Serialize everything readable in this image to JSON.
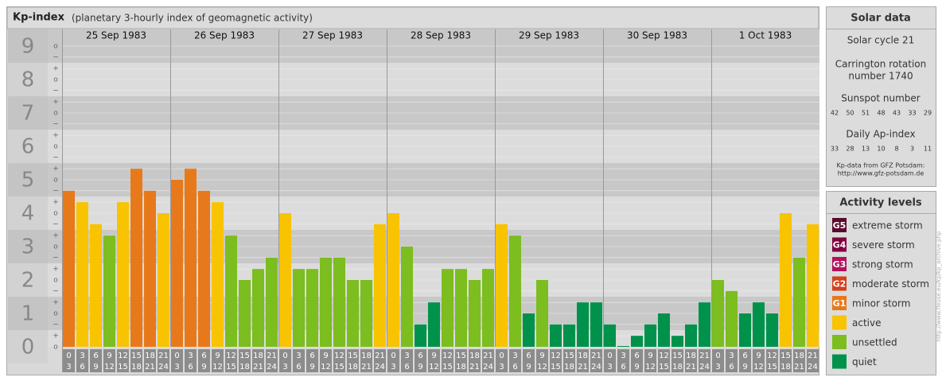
{
  "chart_data": {
    "type": "bar",
    "title": "Kp-index",
    "subtitle": "(planetary 3-hourly index of geomagnetic activity)",
    "ylim": [
      0,
      9.5
    ],
    "yticks": [
      0,
      1,
      2,
      3,
      4,
      5,
      6,
      7,
      8,
      9
    ],
    "minor_ticks": [
      {
        "value": 0,
        "label": "o"
      },
      {
        "value": 0.33,
        "label": "+"
      },
      {
        "value": 0.67,
        "label": "−"
      },
      {
        "value": 1,
        "label": "o"
      },
      {
        "value": 1.33,
        "label": "+"
      },
      {
        "value": 1.67,
        "label": "−"
      },
      {
        "value": 2,
        "label": "o"
      },
      {
        "value": 2.33,
        "label": "+"
      },
      {
        "value": 2.67,
        "label": "−"
      },
      {
        "value": 3,
        "label": "o"
      },
      {
        "value": 3.33,
        "label": "+"
      },
      {
        "value": 3.67,
        "label": "−"
      },
      {
        "value": 4,
        "label": "o"
      },
      {
        "value": 4.33,
        "label": "+"
      },
      {
        "value": 4.67,
        "label": "−"
      },
      {
        "value": 5,
        "label": "o"
      },
      {
        "value": 5.33,
        "label": "+"
      },
      {
        "value": 5.67,
        "label": "−"
      },
      {
        "value": 6,
        "label": "o"
      },
      {
        "value": 6.33,
        "label": "+"
      },
      {
        "value": 6.67,
        "label": "−"
      },
      {
        "value": 7,
        "label": "o"
      },
      {
        "value": 7.33,
        "label": "+"
      },
      {
        "value": 7.67,
        "label": "−"
      },
      {
        "value": 8,
        "label": "o"
      },
      {
        "value": 8.33,
        "label": "+"
      },
      {
        "value": 8.67,
        "label": "−"
      },
      {
        "value": 9,
        "label": "o"
      }
    ],
    "hours": [
      0,
      3,
      6,
      9,
      12,
      15,
      18,
      21,
      24
    ],
    "grid": true,
    "days": [
      {
        "date": "25 Sep 1983",
        "values": [
          4.67,
          4.33,
          3.67,
          3.33,
          4.33,
          5.33,
          4.67,
          4
        ],
        "colors": [
          "#e8791b",
          "#f8c300",
          "#f8c300",
          "#7cbd1f",
          "#f8c300",
          "#e8791b",
          "#e8791b",
          "#f8c300"
        ]
      },
      {
        "date": "26 Sep 1983",
        "values": [
          5,
          5.33,
          4.67,
          4.33,
          3.33,
          2,
          2.33,
          2.67
        ],
        "colors": [
          "#e8791b",
          "#e8791b",
          "#e8791b",
          "#f8c300",
          "#7cbd1f",
          "#7cbd1f",
          "#7cbd1f",
          "#7cbd1f"
        ]
      },
      {
        "date": "27 Sep 1983",
        "values": [
          4,
          2.33,
          2.33,
          2.67,
          2.67,
          2,
          2,
          3.67
        ],
        "colors": [
          "#f8c300",
          "#7cbd1f",
          "#7cbd1f",
          "#7cbd1f",
          "#7cbd1f",
          "#7cbd1f",
          "#7cbd1f",
          "#f8c300"
        ]
      },
      {
        "date": "28 Sep 1983",
        "values": [
          4,
          3,
          0.67,
          1.33,
          2.33,
          2.33,
          2,
          2.33
        ],
        "colors": [
          "#f8c300",
          "#7cbd1f",
          "#00924a",
          "#00924a",
          "#7cbd1f",
          "#7cbd1f",
          "#7cbd1f",
          "#7cbd1f"
        ]
      },
      {
        "date": "29 Sep 1983",
        "values": [
          3.67,
          3.33,
          1,
          2,
          0.67,
          0.67,
          1.33,
          1.33
        ],
        "colors": [
          "#f8c300",
          "#7cbd1f",
          "#00924a",
          "#7cbd1f",
          "#00924a",
          "#00924a",
          "#00924a",
          "#00924a"
        ]
      },
      {
        "date": "30 Sep 1983",
        "values": [
          0.67,
          0,
          0.33,
          0.67,
          1,
          0.33,
          0.67,
          1.33
        ],
        "colors": [
          "#00924a",
          "#00924a",
          "#00924a",
          "#00924a",
          "#00924a",
          "#00924a",
          "#00924a",
          "#00924a"
        ]
      },
      {
        "date": "1 Oct 1983",
        "values": [
          2,
          1.67,
          1,
          1.33,
          1,
          4,
          2.67,
          3.67
        ],
        "colors": [
          "#7cbd1f",
          "#7cbd1f",
          "#00924a",
          "#00924a",
          "#00924a",
          "#f8c300",
          "#7cbd1f",
          "#f8c300"
        ]
      }
    ]
  },
  "solar_data": {
    "title": "Solar data",
    "cycle": "Solar cycle 21",
    "carrington": [
      "Carrington rotation",
      "number 1740"
    ],
    "sunspot_title": "Sunspot number",
    "sunspot": [
      42,
      50,
      51,
      48,
      43,
      33,
      29
    ],
    "ap_title": "Daily Ap-index",
    "ap": [
      33,
      28,
      13,
      10,
      8,
      3,
      11
    ],
    "source": [
      "Kp-data from GFZ Potsdam:",
      "http://www.gfz-potsdam.de"
    ]
  },
  "activity_levels": {
    "title": "Activity levels",
    "items": [
      {
        "code": "G5",
        "name": "extreme storm",
        "color": "#5a0a2c"
      },
      {
        "code": "G4",
        "name": "severe storm",
        "color": "#82003f"
      },
      {
        "code": "G3",
        "name": "strong storm",
        "color": "#b3105e"
      },
      {
        "code": "G2",
        "name": "moderate storm",
        "color": "#d5401c"
      },
      {
        "code": "G1",
        "name": "minor storm",
        "color": "#e8791b"
      },
      {
        "code": "",
        "name": "active",
        "color": "#f8c300"
      },
      {
        "code": "",
        "name": "unsettled",
        "color": "#7cbd1f"
      },
      {
        "code": "",
        "name": "quiet",
        "color": "#00924a"
      }
    ]
  },
  "side_note": "http://www.fleuse.eu/kp/kp_archive.php"
}
